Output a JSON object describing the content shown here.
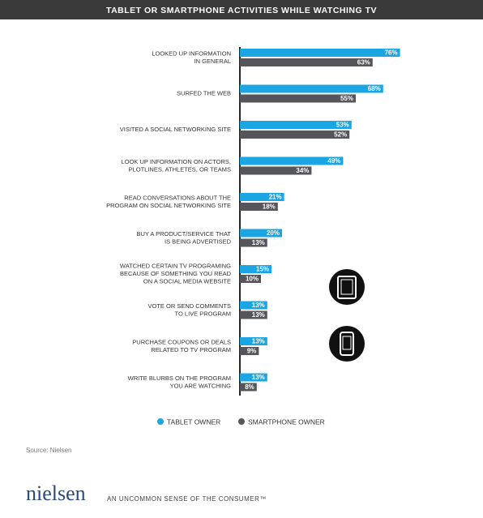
{
  "chart_data": {
    "type": "bar",
    "orientation": "horizontal",
    "title": "TABLET OR SMARTPHONE ACTIVITIES WHILE WATCHING TV",
    "categories": [
      "LOOKED UP INFORMATION\nIN GENERAL",
      "SURFED THE WEB",
      "VISITED A SOCIAL NETWORKING SITE",
      "LOOK UP INFORMATION ON ACTORS,\nPLOTLINES, ATHLETES, OR TEAMS",
      "READ CONVERSATIONS ABOUT THE\nPROGRAM ON SOCIAL NETWORKING SITE",
      "BUY A PRODUCT/SERVICE THAT\nIS BEING ADVERTISED",
      "WATCHED CERTAIN TV PROGRAMING\nBECAUSE OF SOMETHING YOU READ\nON A SOCIAL MEDIA WEBSITE",
      "VOTE OR SEND COMMENTS\nTO LIVE PROGRAM",
      "PURCHASE COUPONS OR DEALS\nRELATED TO TV PROGRAM",
      "WRITE BLURBS ON THE PROGRAM\nYOU ARE WATCHING"
    ],
    "series": [
      {
        "name": "TABLET OWNER",
        "color": "#1ba6e3",
        "values": [
          76,
          68,
          53,
          49,
          21,
          20,
          15,
          13,
          13,
          13
        ],
        "value_labels": [
          "76%",
          "68%",
          "53%",
          "49%",
          "21%",
          "20%",
          "15%",
          "13%",
          "13%",
          "13%"
        ]
      },
      {
        "name": "SMARTPHONE OWNER",
        "color": "#55565b",
        "values": [
          63,
          55,
          52,
          34,
          18,
          13,
          10,
          13,
          9,
          8
        ],
        "value_labels": [
          "63%",
          "55%",
          "52%",
          "34%",
          "18%",
          "13%",
          "10%",
          "13%",
          "9%",
          "8%"
        ]
      }
    ],
    "source": "Source: Nielsen",
    "brand": "nielsen",
    "tagline": "AN UNCOMMON SENSE OF THE CONSUMER™"
  }
}
